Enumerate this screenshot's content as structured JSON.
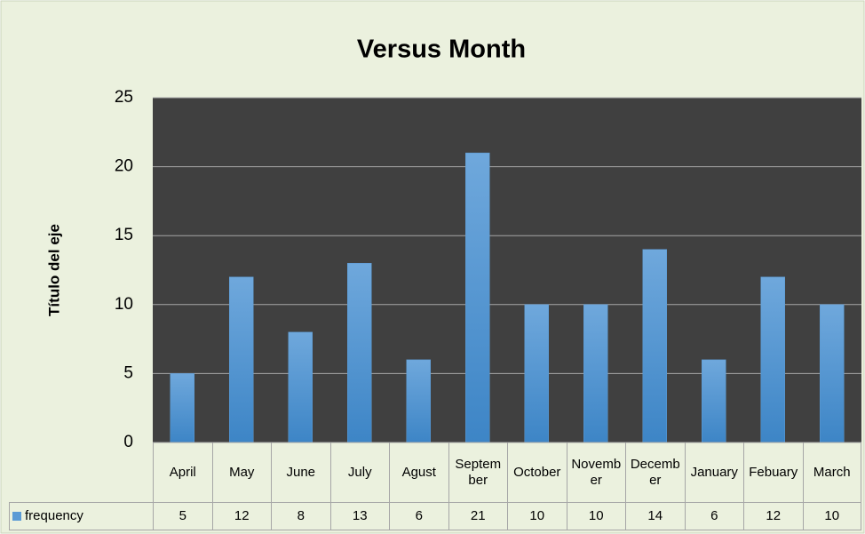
{
  "chart_data": {
    "type": "bar",
    "title": "Versus Month",
    "y_label": "Título del eje",
    "categories": [
      "April",
      "May",
      "June",
      "July",
      "Agust",
      "September",
      "October",
      "November",
      "December",
      "January",
      "Febuary",
      "March"
    ],
    "series": [
      {
        "name": "frequency",
        "color": "#5b9bd5",
        "values": [
          5,
          12,
          8,
          13,
          6,
          21,
          10,
          10,
          14,
          6,
          12,
          10
        ]
      }
    ],
    "ylim": [
      0,
      25
    ],
    "yticks": [
      0,
      5,
      10,
      15,
      20,
      25
    ],
    "grid": true
  }
}
